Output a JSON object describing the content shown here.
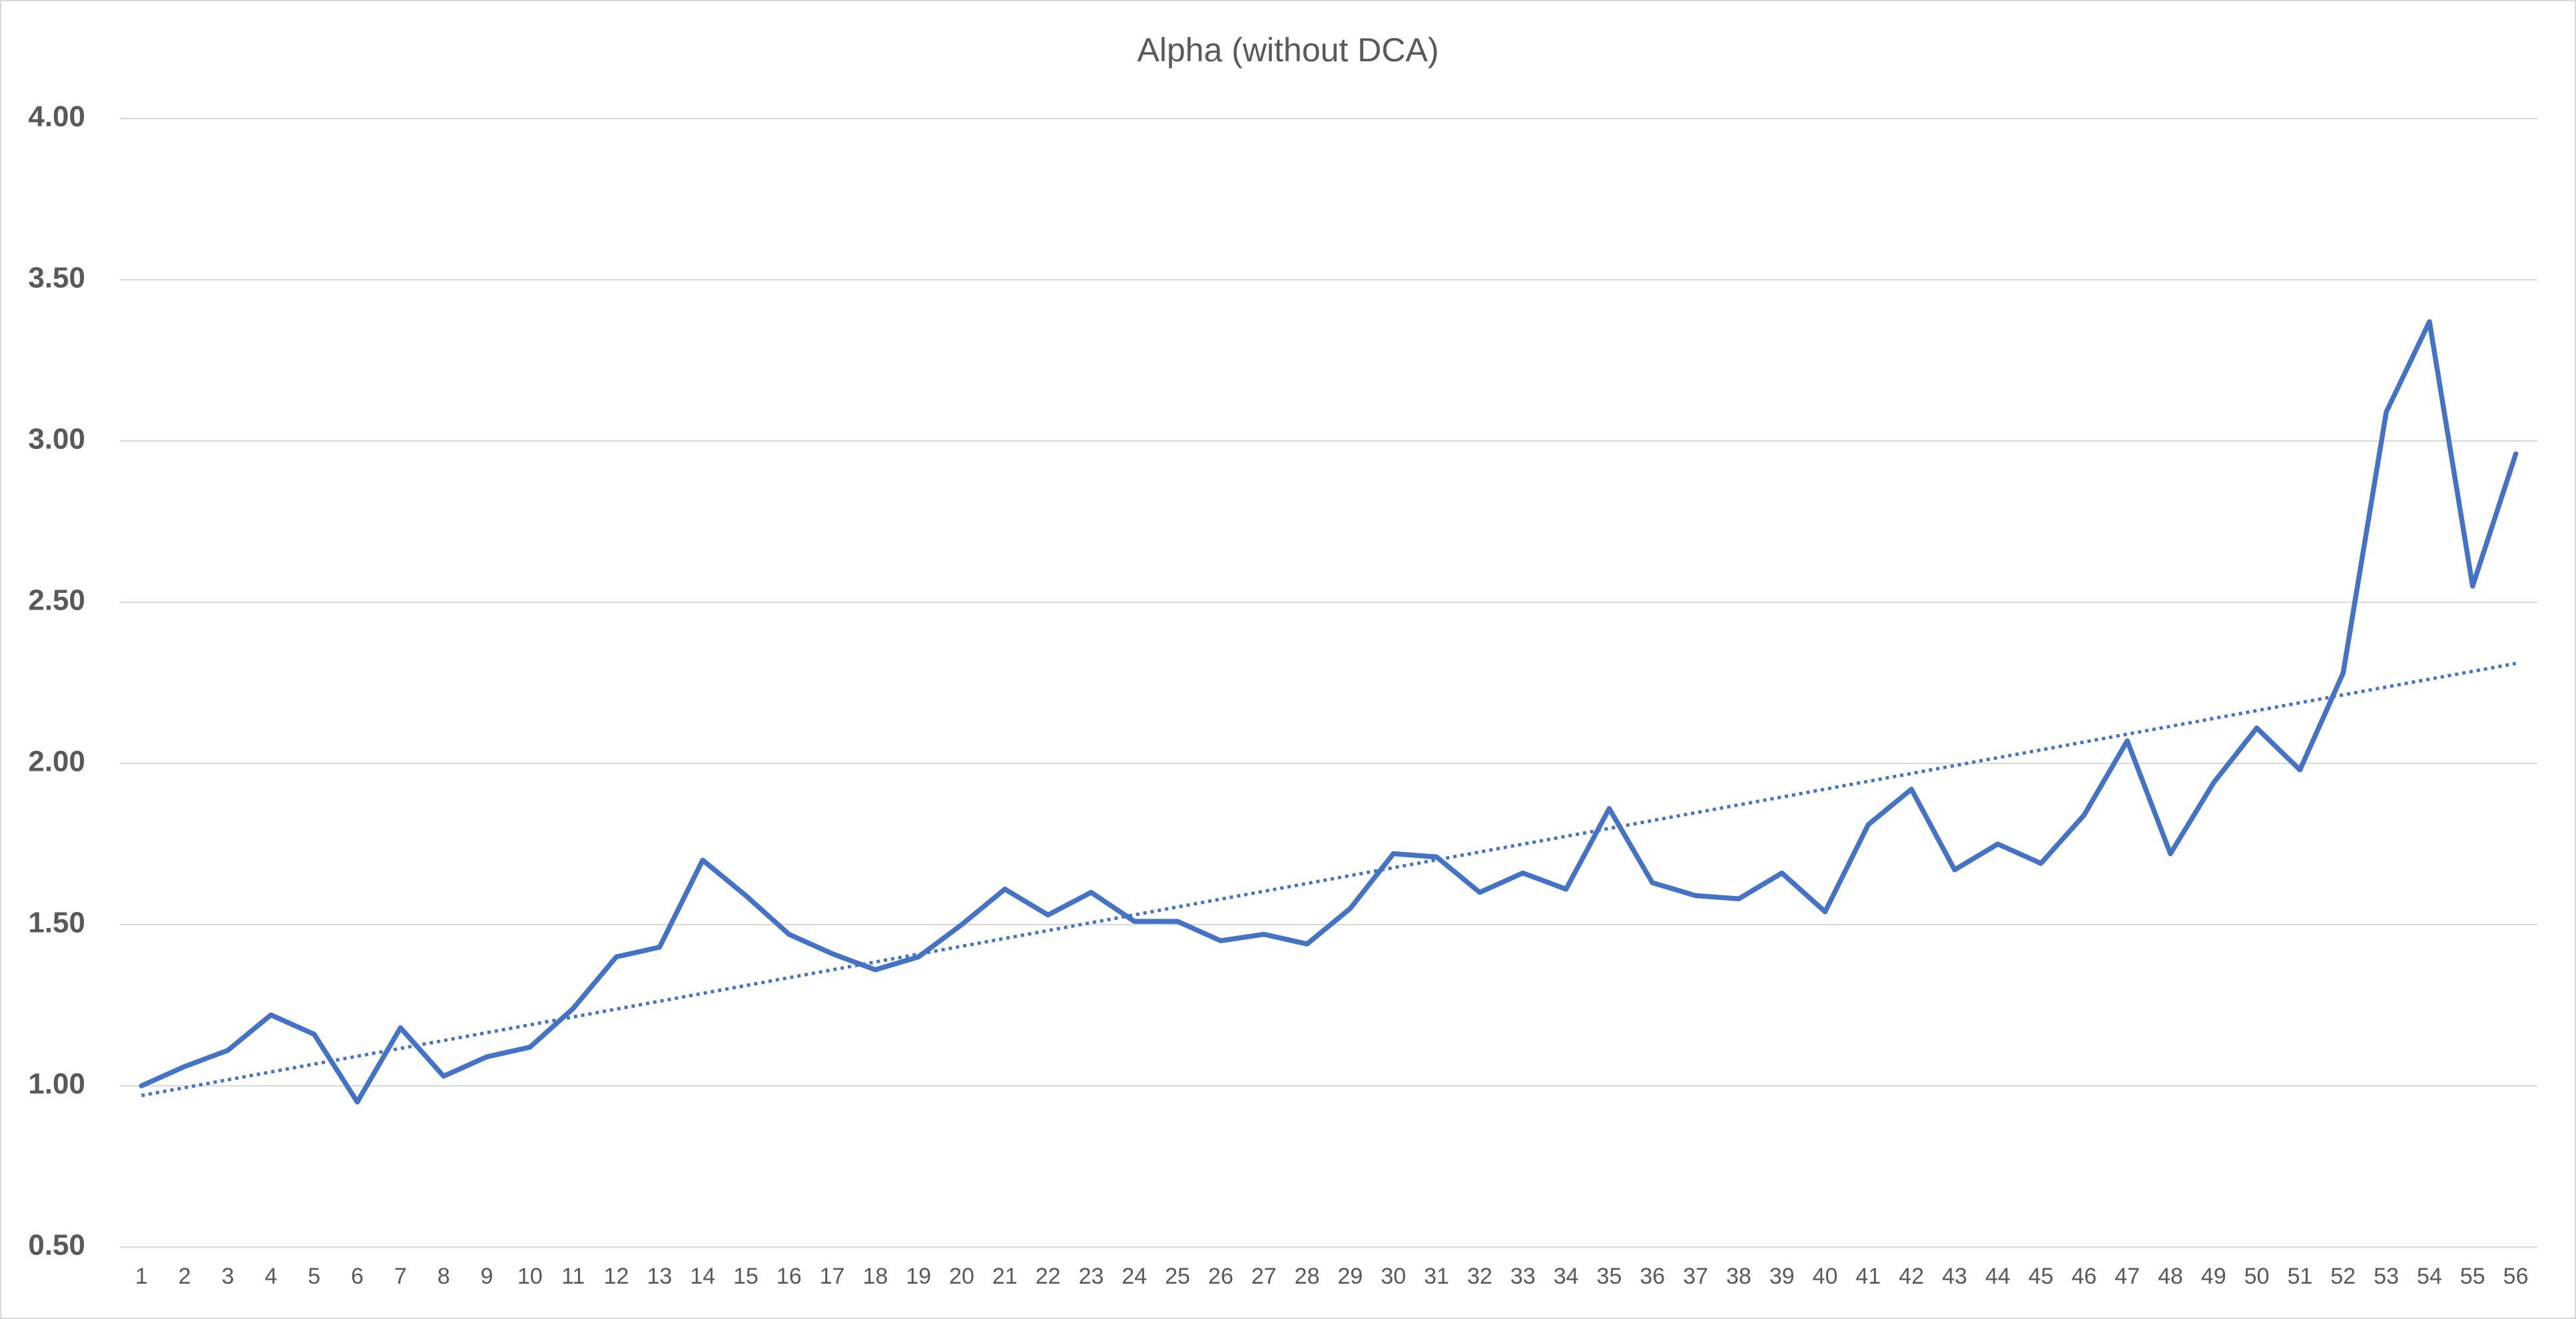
{
  "chart_data": {
    "type": "line",
    "title": "Alpha (without DCA)",
    "categories": [
      "1",
      "2",
      "3",
      "4",
      "5",
      "6",
      "7",
      "8",
      "9",
      "10",
      "11",
      "12",
      "13",
      "14",
      "15",
      "16",
      "17",
      "18",
      "19",
      "20",
      "21",
      "22",
      "23",
      "24",
      "25",
      "26",
      "27",
      "28",
      "29",
      "30",
      "31",
      "32",
      "33",
      "34",
      "35",
      "36",
      "37",
      "38",
      "39",
      "40",
      "41",
      "42",
      "43",
      "44",
      "45",
      "46",
      "47",
      "48",
      "49",
      "50",
      "51",
      "52",
      "53",
      "54",
      "55",
      "56"
    ],
    "series": [
      {
        "color": "#4472c4",
        "values": [
          1.0,
          1.06,
          1.11,
          1.22,
          1.16,
          0.95,
          1.18,
          1.03,
          1.09,
          1.12,
          1.24,
          1.4,
          1.43,
          1.7,
          1.59,
          1.47,
          1.41,
          1.36,
          1.4,
          1.5,
          1.61,
          1.53,
          1.6,
          1.51,
          1.51,
          1.45,
          1.47,
          1.44,
          1.55,
          1.72,
          1.71,
          1.6,
          1.66,
          1.61,
          1.86,
          1.63,
          1.59,
          1.58,
          1.66,
          1.54,
          1.81,
          1.92,
          1.67,
          1.75,
          1.69,
          1.84,
          2.07,
          1.72,
          1.94,
          2.11,
          1.98,
          2.28,
          3.09,
          3.37,
          2.55,
          2.96
        ]
      }
    ],
    "trendline": {
      "color": "#4472c4",
      "style": "dotted",
      "values": [
        0.97,
        2.31
      ]
    },
    "ylim": [
      0.5,
      4.0
    ],
    "yticks": [
      {
        "value": 0.5,
        "label": "0.50"
      },
      {
        "value": 1.0,
        "label": "1.00"
      },
      {
        "value": 1.5,
        "label": "1.50"
      },
      {
        "value": 2.0,
        "label": "2.00"
      },
      {
        "value": 2.5,
        "label": "2.50"
      },
      {
        "value": 3.0,
        "label": "3.00"
      },
      {
        "value": 3.5,
        "label": "3.50"
      },
      {
        "value": 4.0,
        "label": "4.00"
      }
    ],
    "grid": true
  }
}
